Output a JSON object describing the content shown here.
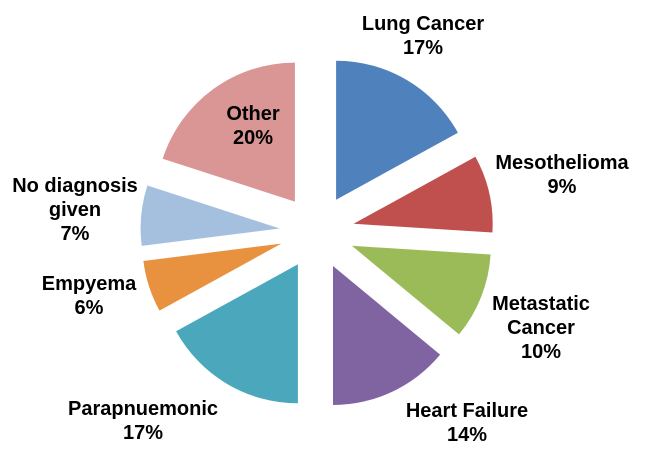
{
  "chart_data": {
    "type": "pie",
    "title": "",
    "legend_position": "none",
    "start_angle_deg": 0,
    "direction": "clockwise",
    "explode_pct": 27,
    "label_style": "category name + percent, bold black",
    "slices": [
      {
        "label": "Lung Cancer",
        "value_pct": 17,
        "color": "#4F81BD",
        "label_text": "Lung Cancer\n17%"
      },
      {
        "label": "Mesothelioma",
        "value_pct": 9,
        "color": "#C0504D",
        "label_text": "Mesothelioma\n9%"
      },
      {
        "label": "Metastatic Cancer",
        "value_pct": 10,
        "color": "#9BBB59",
        "label_text": "Metastatic\nCancer\n10%"
      },
      {
        "label": "Heart Failure",
        "value_pct": 14,
        "color": "#8064A2",
        "label_text": "Heart Failure\n14%"
      },
      {
        "label": "Parapnuemonic",
        "value_pct": 17,
        "color": "#4BA8BC",
        "label_text": "Parapnuemonic\n17%"
      },
      {
        "label": "Empyema",
        "value_pct": 6,
        "color": "#E8913E",
        "label_text": "Empyema\n6%"
      },
      {
        "label": "No diagnosis given",
        "value_pct": 7,
        "color": "#A5BFDE",
        "label_text": "No diagnosis\ngiven\n7%"
      },
      {
        "label": "Other",
        "value_pct": 20,
        "color": "#D99694",
        "label_text": "Other\n20%"
      }
    ]
  }
}
